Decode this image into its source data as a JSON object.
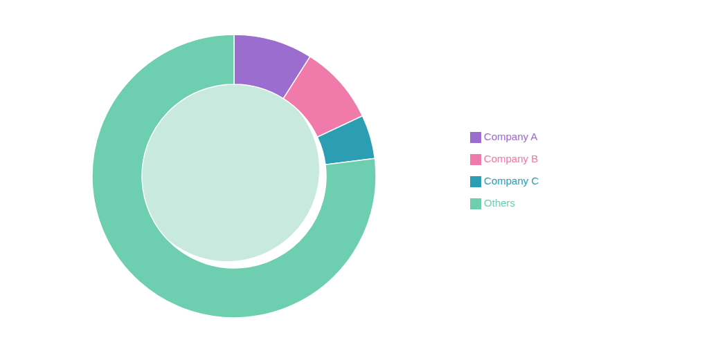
{
  "chart_data": {
    "type": "pie",
    "categories": [
      "Company A",
      "Company B",
      "Company C",
      "Others"
    ],
    "values": [
      9,
      9,
      5,
      77
    ],
    "colors": [
      "#9b6dce",
      "#f07aaa",
      "#2b9eb3",
      "#6dcfb0"
    ],
    "legend": "right"
  }
}
